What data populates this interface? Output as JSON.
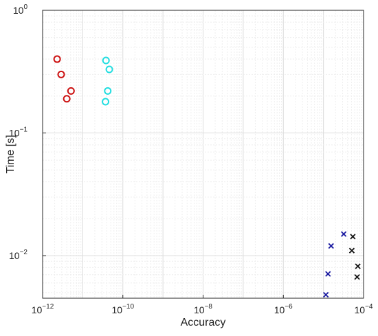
{
  "chart_data": {
    "type": "scatter",
    "title": "",
    "xlabel": "Accuracy",
    "ylabel": "Time [s]",
    "xscale": "log",
    "yscale": "log",
    "xlim": [
      1e-12,
      0.0001
    ],
    "ylim": [
      0.0045,
      1
    ],
    "grid": true,
    "legend": "none",
    "x_ticks": [
      {
        "value": 1e-12,
        "base": "10",
        "exp": "−12"
      },
      {
        "value": 1e-10,
        "base": "10",
        "exp": "−10"
      },
      {
        "value": 1e-08,
        "base": "10",
        "exp": "−8"
      },
      {
        "value": 1e-06,
        "base": "10",
        "exp": "−6"
      },
      {
        "value": 0.0001,
        "base": "10",
        "exp": "−4"
      }
    ],
    "y_ticks": [
      {
        "value": 0.01,
        "base": "10",
        "exp": "−2"
      },
      {
        "value": 0.1,
        "base": "10",
        "exp": "−1"
      },
      {
        "value": 1,
        "base": "10",
        "exp": "0"
      }
    ],
    "series": [
      {
        "marker": "circle",
        "color": "#cc1111",
        "points": [
          [
            2.3e-12,
            0.4
          ],
          [
            2.9e-12,
            0.3
          ],
          [
            4e-12,
            0.19
          ],
          [
            5.1e-12,
            0.22
          ]
        ]
      },
      {
        "marker": "circle",
        "color": "#22dde0",
        "points": [
          [
            3.8e-11,
            0.39
          ],
          [
            4.6e-11,
            0.33
          ],
          [
            4.2e-11,
            0.22
          ],
          [
            3.7e-11,
            0.18
          ]
        ]
      },
      {
        "marker": "x",
        "color": "#1a1aa0",
        "points": [
          [
            3.2e-05,
            0.015
          ],
          [
            1.55e-05,
            0.012
          ],
          [
            1.3e-05,
            0.0071
          ],
          [
            1.15e-05,
            0.0048
          ]
        ]
      },
      {
        "marker": "x",
        "color": "#111111",
        "points": [
          [
            5.4e-05,
            0.0143
          ],
          [
            5.1e-05,
            0.011
          ],
          [
            7.2e-05,
            0.0082
          ],
          [
            6.9e-05,
            0.0067
          ]
        ]
      }
    ]
  }
}
